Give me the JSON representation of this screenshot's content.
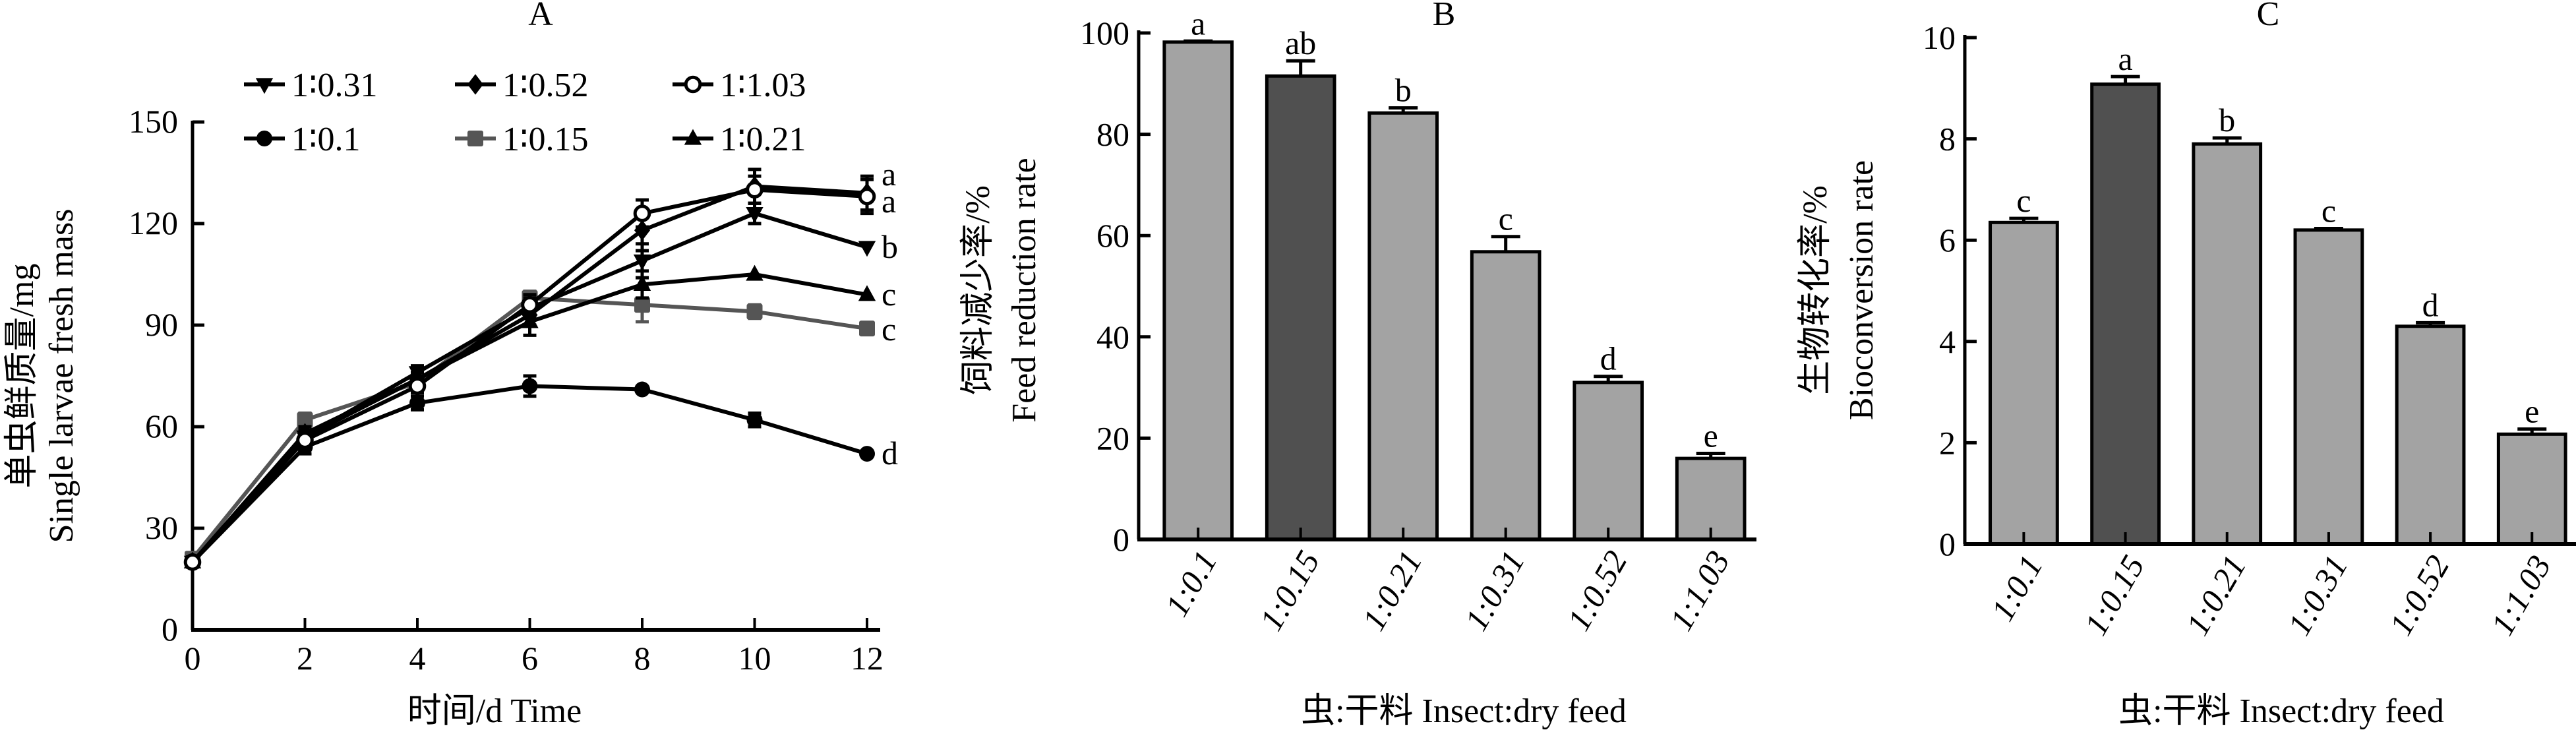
{
  "chart_data": [
    {
      "type": "line",
      "panel": "A",
      "title": "A",
      "xlabel": "时间/d Time",
      "ylabel_cn": "单虫鲜质量/mg",
      "ylabel_en": "Single larvae fresh mass",
      "x": [
        0,
        2,
        4,
        6,
        8,
        10,
        12
      ],
      "xticks": [
        "0",
        "2",
        "4",
        "6",
        "8",
        "10",
        "12"
      ],
      "yticks": [
        "0",
        "30",
        "60",
        "90",
        "120",
        "150"
      ],
      "ylim": [
        0,
        150
      ],
      "xlim": [
        0,
        12
      ],
      "grid": false,
      "legend_position": "top-left",
      "series": [
        {
          "name": "1∶0.31",
          "marker": "triangle-down",
          "color": "#000000",
          "values": [
            20,
            57,
            76,
            95,
            109,
            123,
            113
          ],
          "errors": [
            1.5,
            2,
            2,
            3,
            5,
            3,
            1
          ],
          "sig": "b"
        },
        {
          "name": "1∶0.52",
          "marker": "diamond",
          "color": "#000000",
          "values": [
            20,
            58,
            74,
            93,
            118,
            131,
            129
          ],
          "errors": [
            1.5,
            2,
            2,
            3,
            6,
            5,
            5
          ],
          "sig": "a"
        },
        {
          "name": "1∶1.03",
          "marker": "circle-open",
          "color": "#000000",
          "values": [
            20,
            56,
            72,
            96,
            123,
            130,
            128
          ],
          "errors": [
            1.5,
            2,
            2,
            3,
            4,
            4,
            5
          ],
          "sig": "a"
        },
        {
          "name": "1∶0.1",
          "marker": "circle",
          "color": "#000000",
          "values": [
            20,
            54,
            67,
            72,
            71,
            62,
            52
          ],
          "errors": [
            1.5,
            2,
            2,
            3,
            1,
            2,
            1
          ],
          "sig": "d"
        },
        {
          "name": "1∶0.15",
          "marker": "square",
          "color": "#555555",
          "values": [
            21,
            62,
            73,
            98,
            96,
            94,
            89
          ],
          "errors": [
            1.5,
            2,
            2,
            2,
            5,
            2,
            1
          ],
          "sig": "c"
        },
        {
          "name": "1∶0.21",
          "marker": "triangle-up",
          "color": "#000000",
          "values": [
            20,
            57,
            74,
            91,
            102,
            105,
            99
          ],
          "errors": [
            1.5,
            2,
            2,
            4,
            4,
            1,
            1
          ],
          "sig": "c"
        }
      ]
    },
    {
      "type": "bar",
      "panel": "B",
      "title": "B",
      "xlabel": "虫:干料 Insect:dry feed",
      "ylabel_cn": "饲料减少率/%",
      "ylabel_en": "Feed reduction rate",
      "categories": [
        "1:0.1",
        "1:0.15",
        "1:0.21",
        "1:0.31",
        "1:0.52",
        "1:1.03"
      ],
      "values": [
        98.2,
        91.5,
        84.2,
        56.8,
        31.0,
        16.0
      ],
      "errors": [
        0.2,
        3.0,
        1.0,
        3.0,
        1.2,
        1.0
      ],
      "sig": [
        "a",
        "ab",
        "b",
        "c",
        "d",
        "e"
      ],
      "highlight_index": 1,
      "yticks": [
        "0",
        "20",
        "40",
        "60",
        "80",
        "100"
      ],
      "ylim": [
        0,
        100
      ],
      "grid": false
    },
    {
      "type": "bar",
      "panel": "C",
      "title": "C",
      "xlabel": "虫:干料 Insect:dry feed",
      "ylabel_cn": "生物转化率/%",
      "ylabel_en": "Bioconversion rate",
      "categories": [
        "1:0.1",
        "1:0.15",
        "1:0.21",
        "1:0.31",
        "1:0.52",
        "1:1.03"
      ],
      "values": [
        6.35,
        9.08,
        7.9,
        6.2,
        4.3,
        2.17
      ],
      "errors": [
        0.08,
        0.15,
        0.12,
        0.03,
        0.07,
        0.1
      ],
      "sig": [
        "c",
        "a",
        "b",
        "c",
        "d",
        "e"
      ],
      "highlight_index": 1,
      "yticks": [
        "0",
        "2",
        "4",
        "6",
        "8",
        "10"
      ],
      "ylim": [
        0,
        10
      ],
      "grid": false
    }
  ],
  "colors": {
    "bar_fill": "#a3a3a3",
    "bar_highlight": "#505050",
    "axis": "#000000",
    "gray_series": "#555555"
  }
}
